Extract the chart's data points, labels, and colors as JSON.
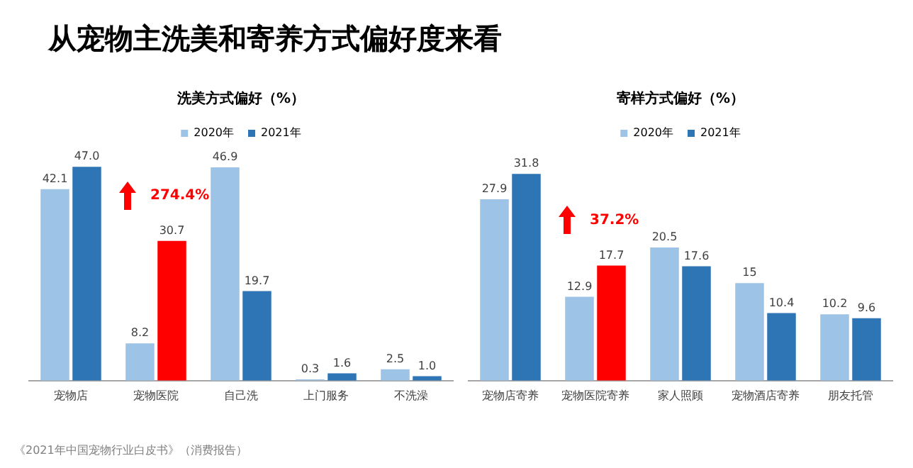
{
  "chart_data": [
    {
      "type": "other",
      "title": "从宠物主洗美和寄养方式偏好度来看",
      "annotations": [
        "《2021年中国宠物行业白皮书》（消费报告）"
      ]
    },
    {
      "type": "bar",
      "title": "洗美方式偏好（%）",
      "categories": [
        "宠物店",
        "宠物医院",
        "自己洗",
        "上门服务",
        "不洗澡"
      ],
      "series": [
        {
          "name": "2020年",
          "color": "#9dc3e6",
          "values": [
            42.1,
            8.2,
            46.9,
            0.3,
            2.5
          ],
          "value_labels": [
            "42.1",
            "8.2",
            "46.9",
            "0.3",
            "2.5"
          ]
        },
        {
          "name": "2021年",
          "color": "#2e75b6",
          "colors": [
            "#2e75b6",
            "#ff0000",
            "#2e75b6",
            "#2e75b6",
            "#2e75b6"
          ],
          "values": [
            47.0,
            30.7,
            19.7,
            1.6,
            1.0
          ],
          "value_labels": [
            "47.0",
            "30.7",
            "19.7",
            "1.6",
            "1.0"
          ]
        }
      ],
      "annotations": [
        "274.4%"
      ],
      "legend": "top",
      "grid": false,
      "tick_labels": "x"
    },
    {
      "type": "bar",
      "title": "寄样方式偏好（%）",
      "categories": [
        "宠物店寄养",
        "宠物医院寄养",
        "家人照顾",
        "宠物酒店寄养",
        "朋友托管"
      ],
      "series": [
        {
          "name": "2020年",
          "color": "#9dc3e6",
          "values": [
            27.9,
            12.9,
            20.5,
            15,
            10.2
          ],
          "value_labels": [
            "27.9",
            "12.9",
            "20.5",
            "15",
            "10.2"
          ]
        },
        {
          "name": "2021年",
          "color": "#2e75b6",
          "colors": [
            "#2e75b6",
            "#ff0000",
            "#2e75b6",
            "#2e75b6",
            "#2e75b6"
          ],
          "values": [
            31.8,
            17.7,
            17.6,
            10.4,
            9.6
          ],
          "value_labels": [
            "31.8",
            "17.7",
            "17.6",
            "10.4",
            "9.6"
          ]
        }
      ],
      "annotations": [
        "37.2%"
      ],
      "legend": "top",
      "grid": false,
      "tick_labels": "x"
    }
  ]
}
